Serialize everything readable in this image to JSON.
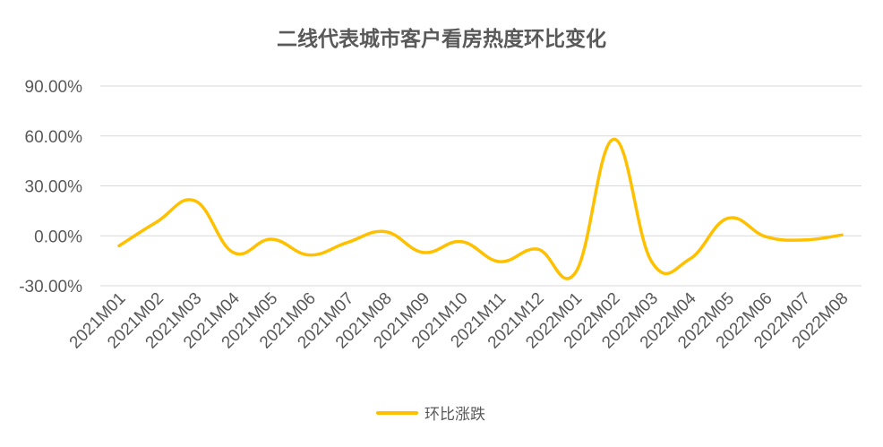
{
  "chart_data": {
    "type": "line",
    "title": "二线代表城市客户看房热度环比变化",
    "xlabel": "",
    "ylabel": "",
    "categories": [
      "2021M01",
      "2021M02",
      "2021M03",
      "2021M04",
      "2021M05",
      "2021M06",
      "2021M07",
      "2021M08",
      "2021M09",
      "2021M10",
      "2021M11",
      "2021M12",
      "2022M01",
      "2022M02",
      "2022M03",
      "2022M04",
      "2022M05",
      "2022M06",
      "2022M07",
      "2022M08"
    ],
    "series": [
      {
        "name": "环比涨跌",
        "color": "#FFC000",
        "values": [
          -6.0,
          8.5,
          21.0,
          -10.0,
          -2.0,
          -11.5,
          -4.0,
          2.5,
          -10.0,
          -3.5,
          -15.5,
          -8.0,
          -22.0,
          58.0,
          -15.5,
          -14.0,
          10.5,
          -0.5,
          -2.5,
          0.5
        ]
      }
    ],
    "ylim": [
      -30,
      90
    ],
    "yticks": [
      -30,
      0,
      30,
      60,
      90
    ],
    "ytick_labels": [
      "-30.00%",
      "0.00%",
      "30.00%",
      "60.00%",
      "90.00%"
    ],
    "grid": true,
    "legend": "bottom",
    "smooth": true
  }
}
